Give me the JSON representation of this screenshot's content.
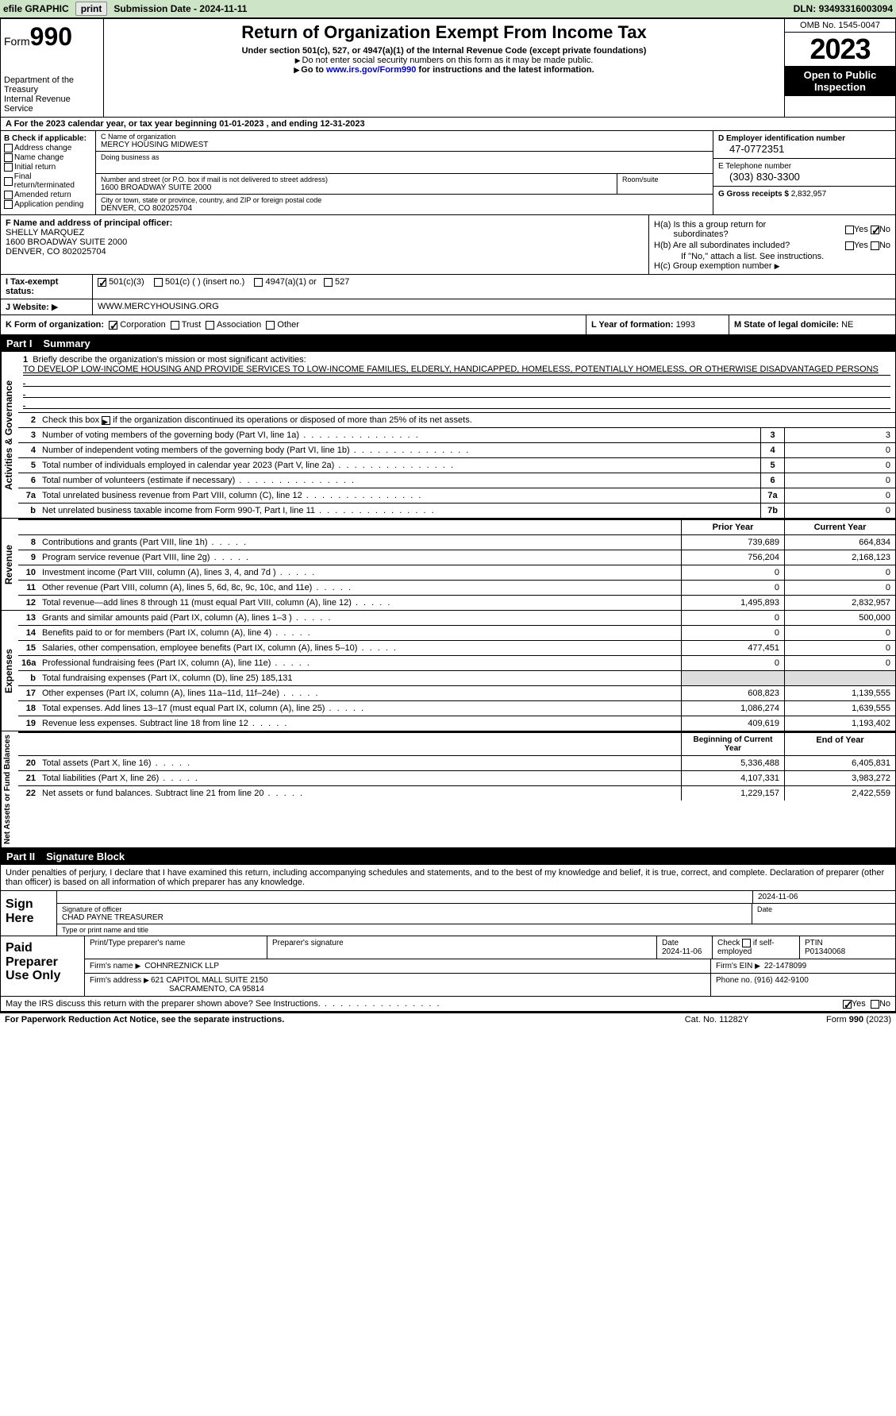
{
  "topbar": {
    "efile": "efile GRAPHIC",
    "print": "print",
    "subdate_label": "Submission Date - ",
    "subdate": "2024-11-11",
    "dln_label": "DLN: ",
    "dln": "93493316003094"
  },
  "header": {
    "form_label": "Form",
    "form_no": "990",
    "dept": "Department of the Treasury",
    "irs": "Internal Revenue Service",
    "title": "Return of Organization Exempt From Income Tax",
    "sub": "Under section 501(c), 527, or 4947(a)(1) of the Internal Revenue Code (except private foundations)",
    "note1": "Do not enter social security numbers on this form as it may be made public.",
    "note2_pre": "Go to ",
    "note2_link": "www.irs.gov/Form990",
    "note2_post": " for instructions and the latest information.",
    "omb": "OMB No. 1545-0047",
    "year": "2023",
    "open": "Open to Public Inspection"
  },
  "row_a": {
    "text": "A For the 2023 calendar year, or tax year beginning 01-01-2023   , and ending 12-31-2023"
  },
  "col_b": {
    "label": "B Check if applicable:",
    "items": [
      "Address change",
      "Name change",
      "Initial return",
      "Final return/terminated",
      "Amended return",
      "Application pending"
    ]
  },
  "col_c": {
    "name_label": "C Name of organization",
    "name": "MERCY HOUSING MIDWEST",
    "dba_label": "Doing business as",
    "street_label": "Number and street (or P.O. box if mail is not delivered to street address)",
    "street": "1600 BROADWAY SUITE 2000",
    "room_label": "Room/suite",
    "city_label": "City or town, state or province, country, and ZIP or foreign postal code",
    "city": "DENVER, CO  802025704"
  },
  "col_d": {
    "ein_label": "D Employer identification number",
    "ein": "47-0772351",
    "tel_label": "E Telephone number",
    "tel": "(303) 830-3300",
    "gross_label": "G Gross receipts $ ",
    "gross": "2,832,957"
  },
  "col_f": {
    "label": "F Name and address of principal officer:",
    "name": "SHELLY MARQUEZ",
    "addr1": "1600 BROADWAY SUITE 2000",
    "addr2": "DENVER, CO  802025704"
  },
  "col_h": {
    "ha": "H(a)  Is this a group return for",
    "ha2": "subordinates?",
    "hb": "H(b)  Are all subordinates included?",
    "hb2": "If \"No,\" attach a list. See instructions.",
    "hc": "H(c)  Group exemption number ",
    "yes": "Yes",
    "no": "No"
  },
  "row_i": {
    "label": "I    Tax-exempt status:",
    "o1": "501(c)(3)",
    "o2": "501(c) (  ) (insert no.)",
    "o3": "4947(a)(1) or",
    "o4": "527"
  },
  "row_j": {
    "label": "J    Website: ",
    "arrow": "▶",
    "val": "WWW.MERCYHOUSING.ORG"
  },
  "row_k": {
    "label": "K Form of organization:",
    "o1": "Corporation",
    "o2": "Trust",
    "o3": "Association",
    "o4": "Other",
    "l_label": "L Year of formation: ",
    "l_val": "1993",
    "m_label": "M State of legal domicile: ",
    "m_val": "NE"
  },
  "part1": {
    "pn": "Part I",
    "title": "Summary"
  },
  "mission": {
    "num": "1",
    "label": "Briefly describe the organization's mission or most significant activities:",
    "text": "TO DEVELOP LOW-INCOME HOUSING AND PROVIDE SERVICES TO LOW-INCOME FAMILIES, ELDERLY, HANDICAPPED, HOMELESS, POTENTIALLY HOMELESS, OR OTHERWISE DISADVANTAGED PERSONS"
  },
  "line2": {
    "num": "2",
    "txt": "Check this box ",
    "txt2": " if the organization discontinued its operations or disposed of more than 25% of its net assets."
  },
  "gov_lines": [
    {
      "n": "3",
      "t": "Number of voting members of the governing body (Part VI, line 1a)",
      "b": "3",
      "v": "3"
    },
    {
      "n": "4",
      "t": "Number of independent voting members of the governing body (Part VI, line 1b)",
      "b": "4",
      "v": "0"
    },
    {
      "n": "5",
      "t": "Total number of individuals employed in calendar year 2023 (Part V, line 2a)",
      "b": "5",
      "v": "0"
    },
    {
      "n": "6",
      "t": "Total number of volunteers (estimate if necessary)",
      "b": "6",
      "v": "0"
    },
    {
      "n": "7a",
      "t": "Total unrelated business revenue from Part VIII, column (C), line 12",
      "b": "7a",
      "v": "0"
    },
    {
      "n": "b",
      "t": "Net unrelated business taxable income from Form 990-T, Part I, line 11",
      "b": "7b",
      "v": "0"
    }
  ],
  "yr_hdr": {
    "prior": "Prior Year",
    "current": "Current Year"
  },
  "rev_lines": [
    {
      "n": "8",
      "t": "Contributions and grants (Part VIII, line 1h)",
      "p": "739,689",
      "c": "664,834"
    },
    {
      "n": "9",
      "t": "Program service revenue (Part VIII, line 2g)",
      "p": "756,204",
      "c": "2,168,123"
    },
    {
      "n": "10",
      "t": "Investment income (Part VIII, column (A), lines 3, 4, and 7d )",
      "p": "0",
      "c": "0"
    },
    {
      "n": "11",
      "t": "Other revenue (Part VIII, column (A), lines 5, 6d, 8c, 9c, 10c, and 11e)",
      "p": "0",
      "c": "0"
    },
    {
      "n": "12",
      "t": "Total revenue—add lines 8 through 11 (must equal Part VIII, column (A), line 12)",
      "p": "1,495,893",
      "c": "2,832,957"
    }
  ],
  "exp_lines": [
    {
      "n": "13",
      "t": "Grants and similar amounts paid (Part IX, column (A), lines 1–3 )",
      "p": "0",
      "c": "500,000"
    },
    {
      "n": "14",
      "t": "Benefits paid to or for members (Part IX, column (A), line 4)",
      "p": "0",
      "c": "0"
    },
    {
      "n": "15",
      "t": "Salaries, other compensation, employee benefits (Part IX, column (A), lines 5–10)",
      "p": "477,451",
      "c": "0"
    },
    {
      "n": "16a",
      "t": "Professional fundraising fees (Part IX, column (A), line 11e)",
      "p": "0",
      "c": "0"
    },
    {
      "n": "b",
      "t": "Total fundraising expenses (Part IX, column (D), line 25) 185,131",
      "noval": true
    },
    {
      "n": "17",
      "t": "Other expenses (Part IX, column (A), lines 11a–11d, 11f–24e)",
      "p": "608,823",
      "c": "1,139,555"
    },
    {
      "n": "18",
      "t": "Total expenses. Add lines 13–17 (must equal Part IX, column (A), line 25)",
      "p": "1,086,274",
      "c": "1,639,555"
    },
    {
      "n": "19",
      "t": "Revenue less expenses. Subtract line 18 from line 12",
      "p": "409,619",
      "c": "1,193,402"
    }
  ],
  "na_hdr": {
    "beg": "Beginning of Current Year",
    "end": "End of Year"
  },
  "na_lines": [
    {
      "n": "20",
      "t": "Total assets (Part X, line 16)",
      "p": "5,336,488",
      "c": "6,405,831"
    },
    {
      "n": "21",
      "t": "Total liabilities (Part X, line 26)",
      "p": "4,107,331",
      "c": "3,983,272"
    },
    {
      "n": "22",
      "t": "Net assets or fund balances. Subtract line 21 from line 20",
      "p": "1,229,157",
      "c": "2,422,559"
    }
  ],
  "part2": {
    "pn": "Part II",
    "title": "Signature Block"
  },
  "sig_intro": "Under penalties of perjury, I declare that I have examined this return, including accompanying schedules and statements, and to the best of my knowledge and belief, it is true, correct, and complete. Declaration of preparer (other than officer) is based on all information of which preparer has any knowledge.",
  "sign": {
    "here": "Sign Here",
    "sig_label": "Signature of officer",
    "name": "CHAD PAYNE  TREASURER",
    "name_label": "Type or print name and title",
    "date_label": "Date",
    "date": "2024-11-06"
  },
  "prep": {
    "title": "Paid Preparer Use Only",
    "pname_label": "Print/Type preparer's name",
    "psig_label": "Preparer's signature",
    "pdate_label": "Date",
    "pdate": "2024-11-06",
    "check_label": "Check         if self-employed",
    "ptin_label": "PTIN",
    "ptin": "P01340068",
    "firm_label": "Firm's name     ",
    "firm": "COHNREZNICK LLP",
    "fein_label": "Firm's EIN ",
    "fein": "22-1478099",
    "faddr_label": "Firm's address ",
    "faddr1": "621 CAPITOL MALL SUITE 2150",
    "faddr2": "SACRAMENTO, CA  95814",
    "phone_label": "Phone no. ",
    "phone": "(916) 442-9100"
  },
  "discuss": {
    "txt": "May the IRS discuss this return with the preparer shown above? See Instructions.",
    "yes": "Yes",
    "no": "No"
  },
  "footer": {
    "f1": "For Paperwork Reduction Act Notice, see the separate instructions.",
    "f2": "Cat. No. 11282Y",
    "f3": "Form 990 (2023)"
  },
  "vtabs": {
    "gov": "Activities & Governance",
    "rev": "Revenue",
    "exp": "Expenses",
    "na": "Net Assets or Fund Balances"
  }
}
